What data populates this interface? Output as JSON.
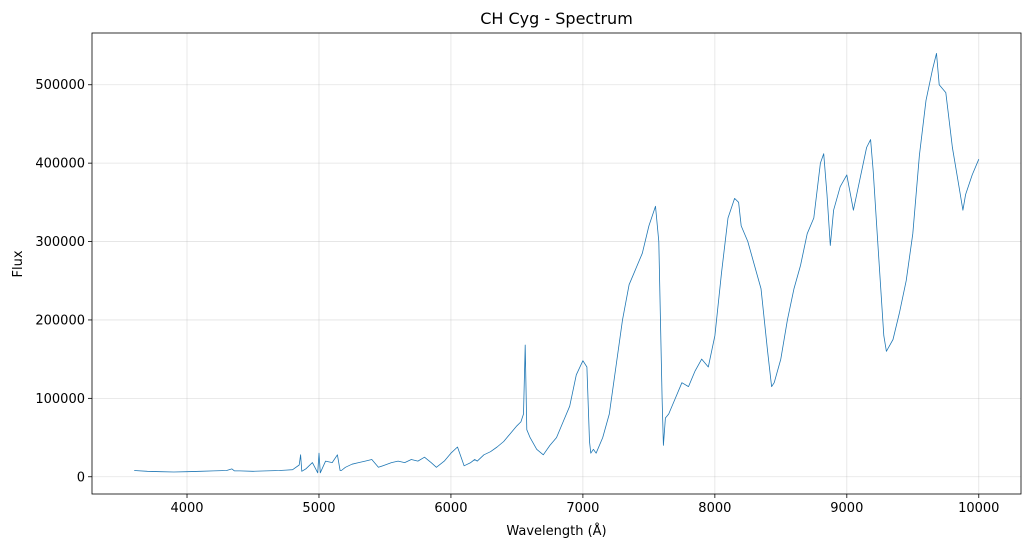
{
  "chart_data": {
    "type": "line",
    "title": "CH Cyg - Spectrum",
    "xlabel": "Wavelength (Å)",
    "ylabel": "Flux",
    "xlim": [
      3280,
      10320
    ],
    "ylim": [
      -22000,
      566000
    ],
    "xticks": [
      4000,
      5000,
      6000,
      7000,
      8000,
      9000,
      10000
    ],
    "yticks": [
      0,
      100000,
      200000,
      300000,
      400000,
      500000
    ],
    "grid": true,
    "line_color": "#1f77b4",
    "series": [
      {
        "x": [
          3600,
          3700,
          3800,
          3900,
          4000,
          4100,
          4200,
          4300,
          4340,
          4360,
          4400,
          4500,
          4600,
          4700,
          4750,
          4800,
          4850,
          4861,
          4870,
          4900,
          4950,
          4990,
          5000,
          5010,
          5050,
          5100,
          5140,
          5160,
          5170,
          5200,
          5250,
          5300,
          5350,
          5400,
          5450,
          5500,
          5550,
          5600,
          5650,
          5700,
          5750,
          5800,
          5850,
          5890,
          5950,
          6000,
          6050,
          6100,
          6150,
          6180,
          6200,
          6250,
          6300,
          6350,
          6400,
          6450,
          6500,
          6530,
          6550,
          6563,
          6575,
          6600,
          6650,
          6700,
          6750,
          6800,
          6850,
          6900,
          6950,
          7000,
          7030,
          7050,
          7060,
          7080,
          7100,
          7150,
          7200,
          7250,
          7300,
          7350,
          7400,
          7450,
          7500,
          7550,
          7575,
          7600,
          7610,
          7625,
          7650,
          7700,
          7750,
          7800,
          7850,
          7900,
          7950,
          8000,
          8050,
          8100,
          8150,
          8180,
          8200,
          8250,
          8300,
          8350,
          8400,
          8430,
          8450,
          8500,
          8550,
          8600,
          8650,
          8700,
          8750,
          8800,
          8825,
          8850,
          8875,
          8900,
          8950,
          9000,
          9050,
          9100,
          9150,
          9180,
          9200,
          9230,
          9280,
          9300,
          9350,
          9400,
          9450,
          9500,
          9550,
          9600,
          9650,
          9680,
          9700,
          9750,
          9800,
          9850,
          9880,
          9900,
          9950,
          10000
        ],
        "y": [
          8000,
          7000,
          6500,
          6000,
          6500,
          7000,
          7500,
          8000,
          10000,
          7500,
          7500,
          7000,
          7500,
          8000,
          8500,
          9000,
          15000,
          28000,
          7000,
          10000,
          18000,
          5000,
          30000,
          5000,
          20000,
          18000,
          28000,
          8000,
          8000,
          12000,
          16000,
          18000,
          20000,
          22000,
          12000,
          15000,
          18000,
          20000,
          18000,
          22000,
          20000,
          25000,
          18000,
          12000,
          20000,
          30000,
          38000,
          14000,
          18000,
          22000,
          20000,
          28000,
          32000,
          38000,
          45000,
          55000,
          65000,
          70000,
          80000,
          168000,
          60000,
          50000,
          35000,
          28000,
          40000,
          50000,
          70000,
          90000,
          130000,
          148000,
          140000,
          45000,
          30000,
          35000,
          30000,
          50000,
          80000,
          140000,
          200000,
          245000,
          265000,
          285000,
          320000,
          345000,
          300000,
          100000,
          40000,
          75000,
          80000,
          100000,
          120000,
          115000,
          135000,
          150000,
          140000,
          180000,
          260000,
          330000,
          355000,
          350000,
          320000,
          300000,
          270000,
          240000,
          160000,
          115000,
          120000,
          150000,
          200000,
          240000,
          270000,
          310000,
          330000,
          400000,
          412000,
          360000,
          295000,
          340000,
          370000,
          385000,
          340000,
          380000,
          420000,
          430000,
          390000,
          310000,
          180000,
          160000,
          175000,
          210000,
          250000,
          310000,
          410000,
          480000,
          520000,
          540000,
          500000,
          490000,
          420000,
          370000,
          340000,
          360000,
          385000,
          405000
        ]
      }
    ]
  }
}
